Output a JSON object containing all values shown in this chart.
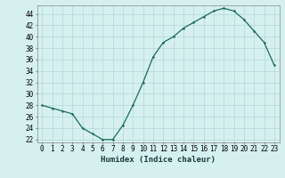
{
  "x": [
    0,
    1,
    2,
    3,
    4,
    5,
    6,
    7,
    8,
    9,
    10,
    11,
    12,
    13,
    14,
    15,
    16,
    17,
    18,
    19,
    20,
    21,
    22,
    23
  ],
  "y": [
    28,
    27.5,
    27,
    26.5,
    24,
    23,
    22,
    22,
    24.5,
    28,
    32,
    36.5,
    39,
    40,
    41.5,
    42.5,
    43.5,
    44.5,
    45,
    44.5,
    43,
    41,
    39,
    35
  ],
  "title": "",
  "xlabel": "Humidex (Indice chaleur)",
  "ylabel": "",
  "xlim": [
    -0.5,
    23.5
  ],
  "ylim": [
    21.5,
    45.5
  ],
  "yticks": [
    22,
    24,
    26,
    28,
    30,
    32,
    34,
    36,
    38,
    40,
    42,
    44
  ],
  "xticks": [
    0,
    1,
    2,
    3,
    4,
    5,
    6,
    7,
    8,
    9,
    10,
    11,
    12,
    13,
    14,
    15,
    16,
    17,
    18,
    19,
    20,
    21,
    22,
    23
  ],
  "line_color": "#1a6b5a",
  "marker_color": "#1a6b5a",
  "bg_color": "#d6f0f0",
  "grid_color": "#b0d8d8",
  "label_fontsize": 6.5,
  "tick_fontsize": 5.5
}
